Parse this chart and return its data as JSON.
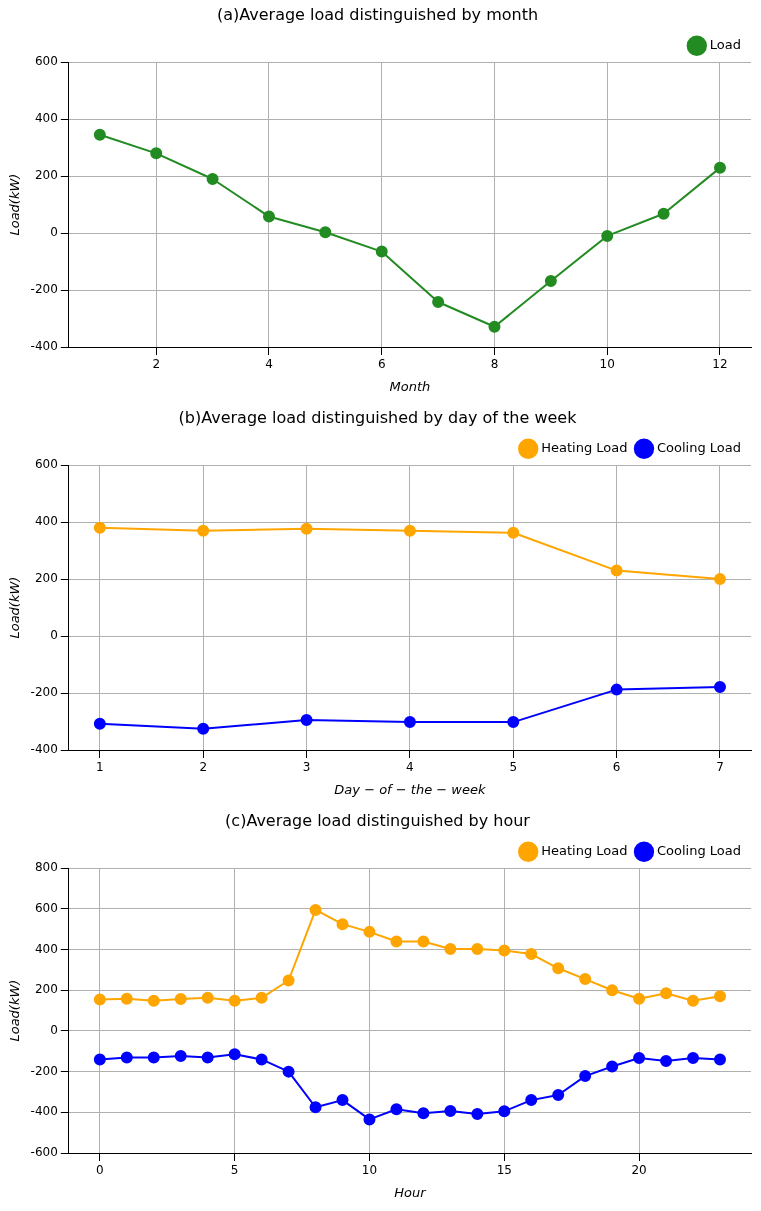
{
  "chart_data": [
    {
      "type": "line",
      "title": "(a)Average load distinguished by month",
      "xlabel": "Month",
      "ylabel": "Load(kW)",
      "x": [
        1,
        2,
        3,
        4,
        5,
        6,
        7,
        8,
        9,
        10,
        11,
        12
      ],
      "series": [
        {
          "name": "Load",
          "color": "#228b22",
          "values": [
            345,
            280,
            190,
            58,
            3,
            -65,
            -242,
            -329,
            -168,
            -10,
            68,
            229
          ]
        }
      ],
      "xlim": [
        0.45,
        12.55
      ],
      "xticks": [
        2,
        4,
        6,
        8,
        10,
        12
      ],
      "ylim": [
        -400,
        600
      ],
      "yticks": [
        -400,
        -200,
        0,
        200,
        400,
        600
      ],
      "grid": true,
      "legend": "top right",
      "marker": "circle"
    },
    {
      "type": "line",
      "title": "(b)Average load distinguished by day of the week",
      "xlabel": "Day − of − the − week",
      "ylabel": "Load(kW)",
      "x": [
        1,
        2,
        3,
        4,
        5,
        6,
        7
      ],
      "series": [
        {
          "name": "Heating Load",
          "color": "#ffa500",
          "values": [
            380,
            370,
            377,
            370,
            363,
            230,
            200
          ]
        },
        {
          "name": "Cooling Load",
          "color": "#0000ff",
          "values": [
            -308,
            -325,
            -295,
            -302,
            -302,
            -188,
            -179
          ]
        }
      ],
      "xlim": [
        0.7,
        7.3
      ],
      "xticks": [
        1,
        2,
        3,
        4,
        5,
        6,
        7
      ],
      "ylim": [
        -400,
        600
      ],
      "yticks": [
        -400,
        -200,
        0,
        200,
        400,
        600
      ],
      "grid": true,
      "legend": "top right",
      "marker": "circle"
    },
    {
      "type": "line",
      "title": "(c)Average load distinguished by hour",
      "xlabel": "Hour",
      "ylabel": "Load(kW)",
      "x": [
        0,
        1,
        2,
        3,
        4,
        5,
        6,
        7,
        8,
        9,
        10,
        11,
        12,
        13,
        14,
        15,
        16,
        17,
        18,
        19,
        20,
        21,
        22,
        23
      ],
      "series": [
        {
          "name": "Heating Load",
          "color": "#ffa500",
          "values": [
            155,
            158,
            148,
            157,
            163,
            148,
            163,
            248,
            595,
            525,
            487,
            440,
            440,
            403,
            403,
            395,
            378,
            308,
            255,
            200,
            158,
            185,
            148,
            170
          ]
        },
        {
          "name": "Cooling Load",
          "color": "#0000ff",
          "values": [
            -140,
            -130,
            -130,
            -123,
            -130,
            -115,
            -140,
            -200,
            -375,
            -340,
            -435,
            -385,
            -405,
            -393,
            -408,
            -395,
            -340,
            -315,
            -222,
            -175,
            -133,
            -148,
            -133,
            -140
          ]
        }
      ],
      "xlim": [
        -1.15,
        24.15
      ],
      "xticks": [
        0,
        5,
        10,
        15,
        20
      ],
      "ylim": [
        -600,
        800
      ],
      "yticks": [
        -600,
        -400,
        -200,
        0,
        200,
        400,
        600,
        800
      ],
      "grid": true,
      "legend": "top right",
      "marker": "circle"
    }
  ]
}
